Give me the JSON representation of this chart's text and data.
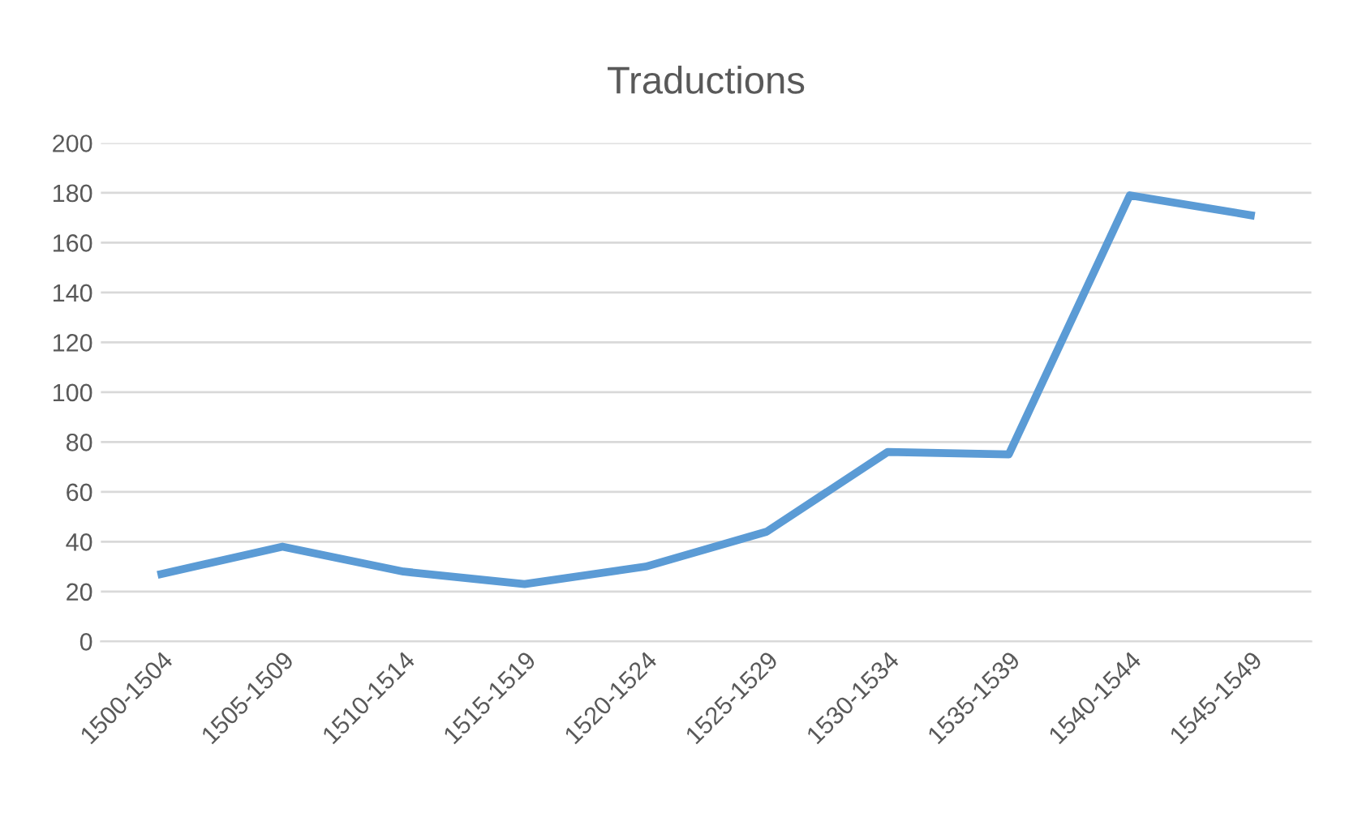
{
  "chart_data": {
    "type": "line",
    "title": "Traductions",
    "categories": [
      "1500-1504",
      "1505-1509",
      "1510-1514",
      "1515-1519",
      "1520-1524",
      "1525-1529",
      "1530-1534",
      "1535-1539",
      "1540-1544",
      "1545-1549"
    ],
    "series": [
      {
        "color": "#5b9bd5",
        "values": [
          27,
          38,
          28,
          23,
          30,
          44,
          76,
          75,
          179,
          171
        ]
      }
    ],
    "ylim": [
      0,
      200
    ],
    "yticks": [
      0,
      20,
      40,
      60,
      80,
      100,
      120,
      140,
      160,
      180,
      200
    ],
    "grid": "y",
    "legend": false,
    "marker": "none",
    "line_style": "solid"
  }
}
